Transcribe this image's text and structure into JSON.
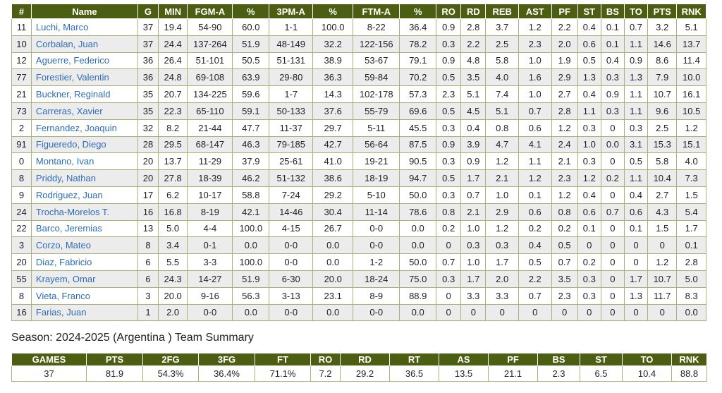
{
  "players_table": {
    "headers": [
      "#",
      "Name",
      "G",
      "MIN",
      "FGM-A",
      "%",
      "3PM-A",
      "%",
      "FTM-A",
      "%",
      "RO",
      "RD",
      "REB",
      "AST",
      "PF",
      "ST",
      "BS",
      "TO",
      "PTS",
      "RNK"
    ],
    "rows": [
      [
        "11",
        "Luchi, Marco",
        "37",
        "19.4",
        "54-90",
        "60.0",
        "1-1",
        "100.0",
        "8-22",
        "36.4",
        "0.9",
        "2.8",
        "3.7",
        "1.2",
        "2.2",
        "0.4",
        "0.1",
        "0.7",
        "3.2",
        "5.1"
      ],
      [
        "10",
        "Corbalan, Juan",
        "37",
        "24.4",
        "137-264",
        "51.9",
        "48-149",
        "32.2",
        "122-156",
        "78.2",
        "0.3",
        "2.2",
        "2.5",
        "2.3",
        "2.0",
        "0.6",
        "0.1",
        "1.1",
        "14.6",
        "13.7"
      ],
      [
        "12",
        "Aguerre, Federico",
        "36",
        "26.4",
        "51-101",
        "50.5",
        "51-131",
        "38.9",
        "53-67",
        "79.1",
        "0.9",
        "4.8",
        "5.8",
        "1.0",
        "1.9",
        "0.5",
        "0.4",
        "0.9",
        "8.6",
        "11.4"
      ],
      [
        "77",
        "Forestier, Valentin",
        "36",
        "24.8",
        "69-108",
        "63.9",
        "29-80",
        "36.3",
        "59-84",
        "70.2",
        "0.5",
        "3.5",
        "4.0",
        "1.6",
        "2.9",
        "1.3",
        "0.3",
        "1.3",
        "7.9",
        "10.0"
      ],
      [
        "21",
        "Buckner, Reginald",
        "35",
        "20.7",
        "134-225",
        "59.6",
        "1-7",
        "14.3",
        "102-178",
        "57.3",
        "2.3",
        "5.1",
        "7.4",
        "1.0",
        "2.7",
        "0.4",
        "0.9",
        "1.1",
        "10.7",
        "16.1"
      ],
      [
        "73",
        "Carreras, Xavier",
        "35",
        "22.3",
        "65-110",
        "59.1",
        "50-133",
        "37.6",
        "55-79",
        "69.6",
        "0.5",
        "4.5",
        "5.1",
        "0.7",
        "2.8",
        "1.1",
        "0.3",
        "1.1",
        "9.6",
        "10.5"
      ],
      [
        "2",
        "Fernandez, Joaquin",
        "32",
        "8.2",
        "21-44",
        "47.7",
        "11-37",
        "29.7",
        "5-11",
        "45.5",
        "0.3",
        "0.4",
        "0.8",
        "0.6",
        "1.2",
        "0.3",
        "0",
        "0.3",
        "2.5",
        "1.2"
      ],
      [
        "91",
        "Figueredo, Diego",
        "28",
        "29.5",
        "68-147",
        "46.3",
        "79-185",
        "42.7",
        "56-64",
        "87.5",
        "0.9",
        "3.9",
        "4.7",
        "4.1",
        "2.4",
        "1.0",
        "0.0",
        "3.1",
        "15.3",
        "15.1"
      ],
      [
        "0",
        "Montano, Ivan",
        "20",
        "13.7",
        "11-29",
        "37.9",
        "25-61",
        "41.0",
        "19-21",
        "90.5",
        "0.3",
        "0.9",
        "1.2",
        "1.1",
        "2.1",
        "0.3",
        "0",
        "0.5",
        "5.8",
        "4.0"
      ],
      [
        "8",
        "Priddy, Nathan",
        "20",
        "27.8",
        "18-39",
        "46.2",
        "51-132",
        "38.6",
        "18-19",
        "94.7",
        "0.5",
        "1.7",
        "2.1",
        "1.2",
        "2.3",
        "1.2",
        "0.2",
        "1.1",
        "10.4",
        "7.3"
      ],
      [
        "9",
        "Rodriguez, Juan",
        "17",
        "6.2",
        "10-17",
        "58.8",
        "7-24",
        "29.2",
        "5-10",
        "50.0",
        "0.3",
        "0.7",
        "1.0",
        "0.1",
        "1.2",
        "0.4",
        "0",
        "0.4",
        "2.7",
        "1.5"
      ],
      [
        "24",
        "Trocha-Morelos T.",
        "16",
        "16.8",
        "8-19",
        "42.1",
        "14-46",
        "30.4",
        "11-14",
        "78.6",
        "0.8",
        "2.1",
        "2.9",
        "0.6",
        "0.8",
        "0.6",
        "0.7",
        "0.6",
        "4.3",
        "5.4"
      ],
      [
        "22",
        "Barco, Jeremias",
        "13",
        "5.0",
        "4-4",
        "100.0",
        "4-15",
        "26.7",
        "0-0",
        "0.0",
        "0.2",
        "1.0",
        "1.2",
        "0.2",
        "0.2",
        "0.1",
        "0",
        "0.1",
        "1.5",
        "1.7"
      ],
      [
        "3",
        "Corzo, Mateo",
        "8",
        "3.4",
        "0-1",
        "0.0",
        "0-0",
        "0.0",
        "0-0",
        "0.0",
        "0",
        "0.3",
        "0.3",
        "0.4",
        "0.5",
        "0",
        "0",
        "0",
        "0",
        "0.1"
      ],
      [
        "20",
        "Diaz, Fabricio",
        "6",
        "5.5",
        "3-3",
        "100.0",
        "0-0",
        "0.0",
        "1-2",
        "50.0",
        "0.7",
        "1.0",
        "1.7",
        "0.5",
        "0.7",
        "0.2",
        "0",
        "0",
        "1.2",
        "2.8"
      ],
      [
        "55",
        "Krayem, Omar",
        "6",
        "24.3",
        "14-27",
        "51.9",
        "6-30",
        "20.0",
        "18-24",
        "75.0",
        "0.3",
        "1.7",
        "2.0",
        "2.2",
        "3.5",
        "0.3",
        "0",
        "1.7",
        "10.7",
        "5.0"
      ],
      [
        "8",
        "Vieta, Franco",
        "3",
        "20.0",
        "9-16",
        "56.3",
        "3-13",
        "23.1",
        "8-9",
        "88.9",
        "0",
        "3.3",
        "3.3",
        "0.7",
        "2.3",
        "0.3",
        "0",
        "1.3",
        "11.7",
        "8.3"
      ],
      [
        "16",
        "Farias, Juan",
        "1",
        "2.0",
        "0-0",
        "0.0",
        "0-0",
        "0.0",
        "0-0",
        "0.0",
        "0",
        "0",
        "0",
        "0",
        "0",
        "0",
        "0",
        "0",
        "0",
        "0.0"
      ]
    ]
  },
  "summary": {
    "title": "Season: 2024-2025 (Argentina ) Team Summary",
    "headers": [
      "GAMES",
      "PTS",
      "2FG",
      "3FG",
      "FT",
      "RO",
      "RD",
      "RT",
      "AS",
      "PF",
      "BS",
      "ST",
      "TO",
      "RNK"
    ],
    "values": [
      "37",
      "81.9",
      "54.3%",
      "36.4%",
      "71.1%",
      "7.2",
      "29.2",
      "36.5",
      "13.5",
      "21.1",
      "2.3",
      "6.5",
      "10.4",
      "88.8"
    ]
  },
  "colors": {
    "header_bg": "#4b5e12",
    "header_text": "#ffffff",
    "link_text": "#2e6db3",
    "row_alt_bg": "#ececec",
    "cell_border": "#a8b37c"
  }
}
